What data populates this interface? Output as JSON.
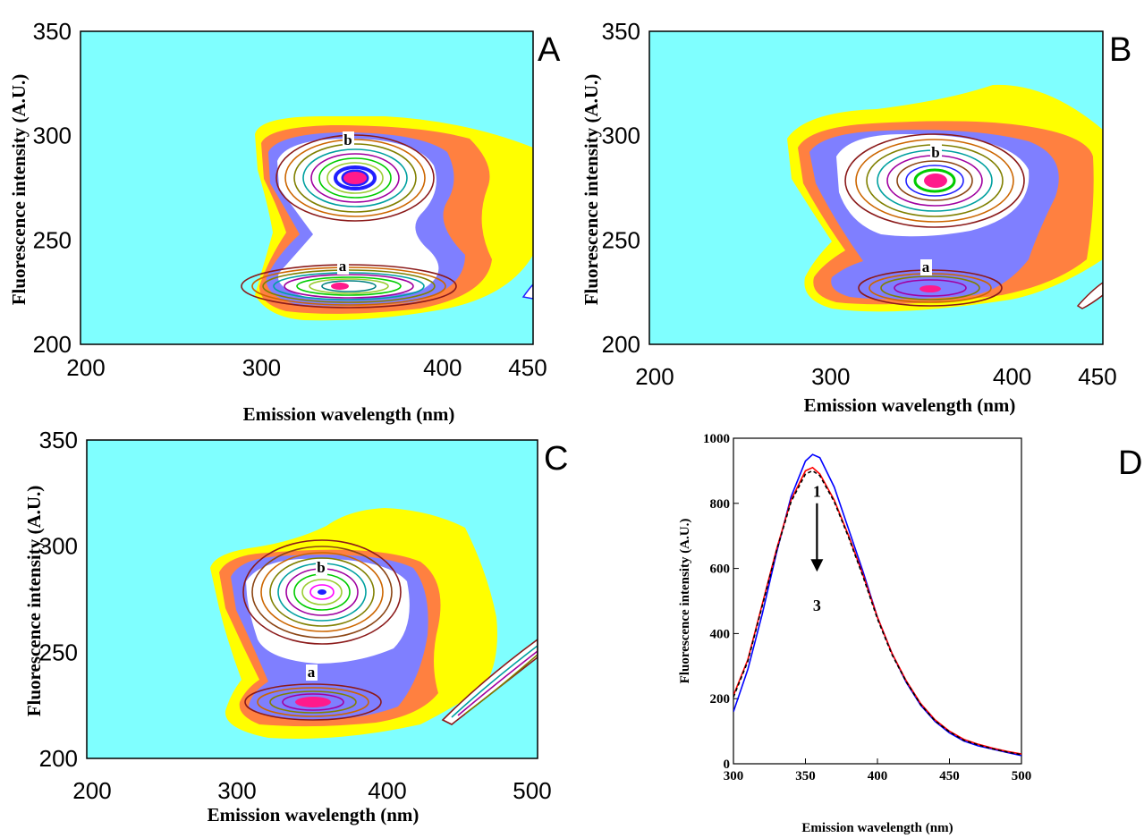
{
  "colors": {
    "background": "#7fffff",
    "band1": "#ffff00",
    "band2": "#ff8040",
    "band3": "#7f7fff",
    "inner": "#ffffff",
    "core": "#ff1a8c",
    "contours": [
      "#8b1a1a",
      "#cc6600",
      "#808000",
      "#00a0a0",
      "#a000a0",
      "#00cc00",
      "#2020ff",
      "#8b0000",
      "#9acd32",
      "#ff00ff",
      "#008080",
      "#8b4513"
    ]
  },
  "chart_data": [
    {
      "panel": "A",
      "type": "heatmap",
      "subtype": "contour",
      "xlabel": "Emission wavelength (nm)",
      "ylabel": "Fluorescence intensity (A.U.)",
      "xlim": [
        200,
        450
      ],
      "ylim": [
        200,
        350
      ],
      "xticks": [
        200,
        300,
        400,
        450
      ],
      "yticks": [
        200,
        250,
        300,
        350
      ],
      "peaks": [
        {
          "label": "b",
          "x": 352,
          "y": 281
        },
        {
          "label": "a",
          "x": 350,
          "y": 227
        }
      ]
    },
    {
      "panel": "B",
      "type": "heatmap",
      "subtype": "contour",
      "xlabel": "Emission wavelength (nm)",
      "ylabel": "Fluorescence intensity (A.U.)",
      "xlim": [
        200,
        450
      ],
      "ylim": [
        200,
        350
      ],
      "xticks": [
        200,
        300,
        400,
        450
      ],
      "yticks": [
        200,
        250,
        300,
        350
      ],
      "peaks": [
        {
          "label": "b",
          "x": 353,
          "y": 280
        },
        {
          "label": "a",
          "x": 352,
          "y": 227
        }
      ]
    },
    {
      "panel": "C",
      "type": "heatmap",
      "subtype": "contour",
      "xlabel": "Emission wavelength (nm)",
      "ylabel": "Fluorescence intensity (A.U.)",
      "xlim": [
        200,
        500
      ],
      "ylim": [
        200,
        350
      ],
      "xticks": [
        200,
        300,
        400,
        500
      ],
      "yticks": [
        200,
        250,
        300,
        350
      ],
      "peaks": [
        {
          "label": "b",
          "x": 358,
          "y": 280
        },
        {
          "label": "a",
          "x": 352,
          "y": 227
        }
      ]
    },
    {
      "panel": "D",
      "type": "line",
      "xlabel": "Emission wavelength (nm)",
      "ylabel": "Fluorescence intensity (A.U.)",
      "xlim": [
        300,
        500
      ],
      "ylim": [
        0,
        1000
      ],
      "xticks": [
        300,
        350,
        400,
        450,
        500
      ],
      "yticks": [
        0,
        200,
        400,
        600,
        800,
        1000
      ],
      "x": [
        300,
        310,
        320,
        330,
        340,
        350,
        355,
        360,
        370,
        380,
        390,
        400,
        410,
        420,
        430,
        440,
        450,
        460,
        470,
        480,
        490,
        500
      ],
      "series": [
        {
          "color": "#0000ff",
          "style": "solid",
          "values": [
            160,
            290,
            460,
            650,
            820,
            930,
            950,
            940,
            850,
            720,
            590,
            450,
            340,
            250,
            180,
            130,
            95,
            70,
            55,
            45,
            35,
            25
          ]
        },
        {
          "color": "#ff0000",
          "style": "solid",
          "values": [
            210,
            320,
            490,
            660,
            810,
            900,
            910,
            890,
            810,
            700,
            580,
            450,
            340,
            255,
            185,
            135,
            100,
            75,
            60,
            48,
            38,
            30
          ]
        },
        {
          "color": "#000000",
          "style": "dashed",
          "values": [
            205,
            315,
            485,
            655,
            805,
            890,
            900,
            885,
            805,
            695,
            575,
            445,
            336,
            252,
            182,
            132,
            98,
            72,
            58,
            46,
            36,
            28
          ]
        }
      ],
      "annotations": [
        {
          "text": "1",
          "x": 358,
          "y": 820
        },
        {
          "text": "3",
          "x": 358,
          "y": 470
        }
      ],
      "arrow": {
        "x": 358,
        "y_from": 800,
        "y_to": 590
      }
    }
  ]
}
